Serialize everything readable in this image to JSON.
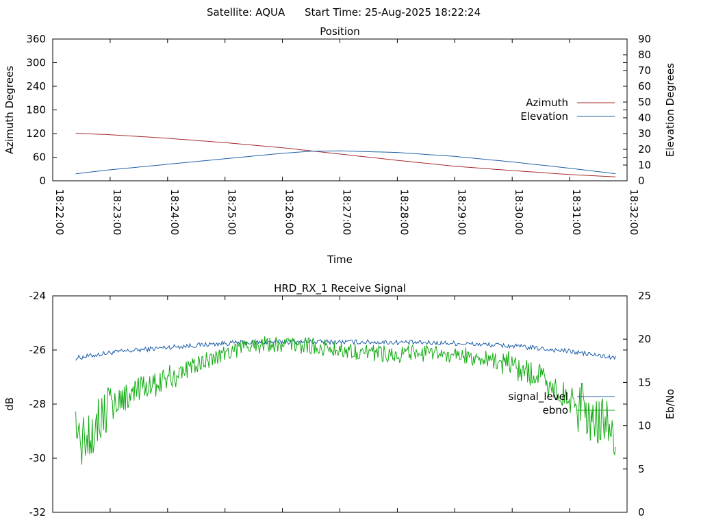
{
  "header": {
    "satellite": "Satellite: AQUA",
    "start_time": "Start Time: 25-Aug-2025 18:22:24"
  },
  "chart_data": [
    {
      "type": "line",
      "title": "Position",
      "xlabel": "Time",
      "ylabel": "Azimuth Degrees",
      "y2label": "Elevation Degrees",
      "xlim": [
        "18:22:00",
        "18:32:00"
      ],
      "ylim": [
        0,
        360
      ],
      "y2lim": [
        0,
        90
      ],
      "x_ticks": [
        "18:22:00",
        "18:23:00",
        "18:24:00",
        "18:25:00",
        "18:26:00",
        "18:27:00",
        "18:28:00",
        "18:29:00",
        "18:30:00",
        "18:31:00",
        "18:32:00"
      ],
      "y_ticks": [
        0,
        60,
        120,
        180,
        240,
        300,
        360
      ],
      "y2_ticks": [
        0,
        10,
        20,
        30,
        40,
        50,
        60,
        70,
        80,
        90
      ],
      "grid": false,
      "legend_position": "right",
      "series": [
        {
          "name": "Azimuth",
          "axis": "y",
          "color": "#a52a2a",
          "x": [
            "18:22:24",
            "18:23:00",
            "18:24:00",
            "18:25:00",
            "18:26:00",
            "18:26:30",
            "18:27:00",
            "18:28:00",
            "18:29:00",
            "18:30:00",
            "18:31:00",
            "18:31:48"
          ],
          "y": [
            121,
            117,
            108,
            97,
            84,
            76,
            68,
            52,
            37,
            26,
            16,
            10
          ]
        },
        {
          "name": "Elevation",
          "axis": "y2",
          "color": "#1f5fa8",
          "x": [
            "18:22:24",
            "18:23:00",
            "18:24:00",
            "18:25:00",
            "18:26:00",
            "18:26:30",
            "18:27:00",
            "18:28:00",
            "18:29:00",
            "18:30:00",
            "18:31:00",
            "18:31:48"
          ],
          "y": [
            4.5,
            7,
            10.5,
            14,
            17.5,
            18.8,
            19,
            18,
            15.5,
            12,
            8,
            4.5
          ]
        }
      ]
    },
    {
      "type": "line",
      "title": "HRD_RX_1 Receive Signal",
      "ylabel": "dB",
      "y2label": "Eb/No",
      "xlim": [
        "18:22:00",
        "18:32:00"
      ],
      "ylim": [
        -32,
        -24
      ],
      "y2lim": [
        0,
        25
      ],
      "y_ticks": [
        -32,
        -30,
        -28,
        -26,
        -24
      ],
      "y2_ticks": [
        0,
        5,
        10,
        15,
        20,
        25
      ],
      "grid": false,
      "legend_position": "right",
      "series": [
        {
          "name": "signal_level",
          "axis": "y",
          "color": "#1f5fa8",
          "x": [
            "18:22:24",
            "18:23:00",
            "18:24:00",
            "18:25:00",
            "18:26:00",
            "18:27:00",
            "18:28:00",
            "18:29:00",
            "18:30:00",
            "18:31:00",
            "18:31:48"
          ],
          "y": [
            -26.3,
            -26.1,
            -25.9,
            -25.75,
            -25.7,
            -25.7,
            -25.72,
            -25.75,
            -25.85,
            -26.05,
            -26.3
          ]
        },
        {
          "name": "ebno",
          "axis": "y2",
          "color": "#11aa11",
          "x": [
            "18:22:24",
            "18:22:30",
            "18:23:00",
            "18:23:30",
            "18:24:00",
            "18:24:30",
            "18:25:00",
            "18:25:30",
            "18:26:00",
            "18:26:30",
            "18:27:00",
            "18:27:30",
            "18:28:00",
            "18:28:30",
            "18:29:00",
            "18:29:30",
            "18:30:00",
            "18:30:30",
            "18:31:00",
            "18:31:30",
            "18:31:48"
          ],
          "y": [
            10,
            8,
            12.5,
            14,
            15.5,
            17,
            18.5,
            19.3,
            19.5,
            19.2,
            18.8,
            18.5,
            18.3,
            18.3,
            18.2,
            17.8,
            17,
            15.5,
            13,
            10.5,
            9.5
          ]
        }
      ]
    }
  ]
}
